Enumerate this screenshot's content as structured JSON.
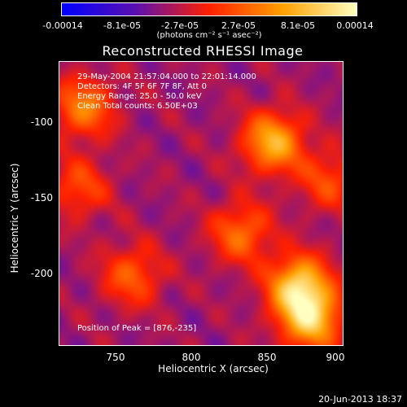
{
  "chart_data": {
    "type": "heatmap",
    "title": "Reconstructed RHESSI Image",
    "xlabel": "Heliocentric X (arcsec)",
    "ylabel": "Heliocentric Y (arcsec)",
    "xlim": [
      712,
      900
    ],
    "ylim": [
      -250,
      -62
    ],
    "x_ticks": [
      "750",
      "800",
      "850",
      "900"
    ],
    "y_ticks": [
      "-100",
      "-150",
      "-200"
    ],
    "colorbar": {
      "ticks": [
        "-0.00014",
        "-8.1e-05",
        "-2.7e-05",
        "2.7e-05",
        "8.1e-05",
        "0.00014"
      ],
      "range": [
        -0.00014,
        0.00014
      ],
      "units": "(photons cm⁻² s⁻¹ asec⁻²)"
    },
    "annotations": [
      "29-May-2004 21:57:04.000 to 22:01:14.000",
      "Detectors: 4F 5F 6F 7F 8F, Att 0",
      "Energy Range: 25.0 - 50.0 keV",
      "Clean    Total counts: 6.50E+03"
    ],
    "peak_label": "Position of Peak = [876,-235]",
    "peak": [
      876,
      -235
    ],
    "sources": [
      {
        "x": 870,
        "y": -210,
        "value": 0.00014
      },
      {
        "x": 878,
        "y": -232,
        "value": 0.00013
      },
      {
        "x": 853,
        "y": -115,
        "value": 0.00012
      },
      {
        "x": 832,
        "y": -175,
        "value": 8e-05
      },
      {
        "x": 728,
        "y": -92,
        "value": 9e-05
      },
      {
        "x": 760,
        "y": -203,
        "value": 7e-05
      },
      {
        "x": 725,
        "y": -145,
        "value": 6e-05
      },
      {
        "x": 890,
        "y": -140,
        "value": 6e-05
      }
    ],
    "colors": [
      "#0000ff",
      "#5a10b0",
      "#ff2000",
      "#ffa000",
      "#ffffc0"
    ]
  },
  "footer": {
    "timestamp": "20-Jun-2013 18:37"
  }
}
